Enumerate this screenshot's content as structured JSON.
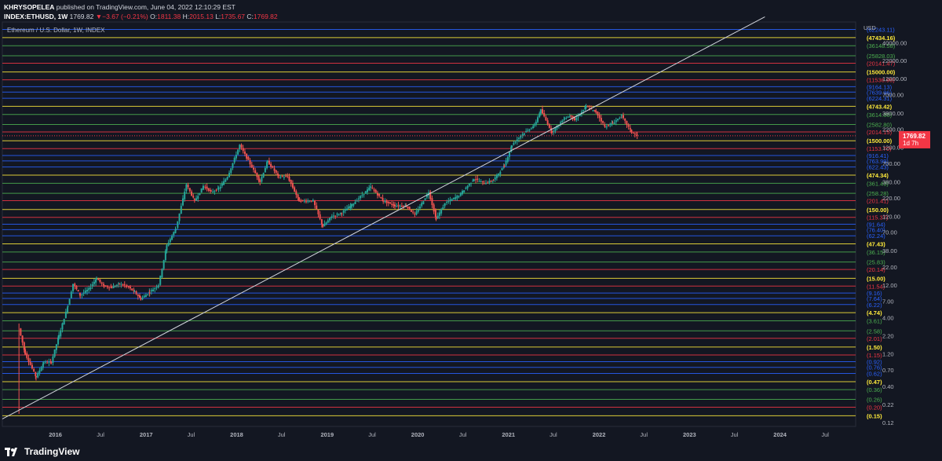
{
  "header": {
    "author": "KHRYSOPELEA",
    "published": "published on TradingView.com, June 04, 2022 12:10:29 EST",
    "symbol": "INDEX:ETHUSD, 1W",
    "last": "1769.82",
    "change": "−3.67 (−0.21%)",
    "open_label": "O:",
    "open": "1811.38",
    "high_label": "H:",
    "high": "2015.13",
    "low_label": "L:",
    "low": "1735.67",
    "close_label": "C:",
    "close": "1769.82"
  },
  "legend": {
    "title": "Ethereum / U.S. Dollar, 1W, INDEX"
  },
  "price_tag": {
    "price": "1769.82",
    "countdown": "1d 7h"
  },
  "footer": {
    "brand": "TradingView"
  },
  "colors": {
    "background": "#131722",
    "yellow": "#ffeb3b",
    "green": "#4caf50",
    "red": "#f23645",
    "blue": "#2962ff",
    "up": "#26a69a",
    "down": "#ef5350"
  },
  "chart_data": {
    "type": "candlestick",
    "series": [
      {
        "name": "Ethereum / U.S. Dollar, 1W, INDEX"
      }
    ],
    "scale": "log",
    "currency": "USD",
    "ylim": [
      0.105,
      80000
    ],
    "xlim": [
      "2015-06-01",
      "2024-11-01"
    ],
    "x_ticks": [
      {
        "label": "2016",
        "date": "2016-01-01"
      },
      {
        "label": "Jul",
        "date": "2016-07-01"
      },
      {
        "label": "2017",
        "date": "2017-01-01"
      },
      {
        "label": "Jul",
        "date": "2017-07-01"
      },
      {
        "label": "2018",
        "date": "2018-01-01"
      },
      {
        "label": "Jul",
        "date": "2018-07-01"
      },
      {
        "label": "2019",
        "date": "2019-01-01"
      },
      {
        "label": "Jul",
        "date": "2019-07-01"
      },
      {
        "label": "2020",
        "date": "2020-01-01"
      },
      {
        "label": "Jul",
        "date": "2020-07-01"
      },
      {
        "label": "2021",
        "date": "2021-01-01"
      },
      {
        "label": "Jul",
        "date": "2021-07-01"
      },
      {
        "label": "2022",
        "date": "2022-01-01"
      },
      {
        "label": "Jul",
        "date": "2022-07-01"
      },
      {
        "label": "2023",
        "date": "2023-01-01"
      },
      {
        "label": "Jul",
        "date": "2023-07-01"
      },
      {
        "label": "2024",
        "date": "2024-01-01"
      },
      {
        "label": "Jul",
        "date": "2024-07-01"
      }
    ],
    "y_ticks": [
      "40000.00",
      "22000.00",
      "12000.00",
      "7000.00",
      "3800.00",
      "2200.00",
      "1200.00",
      "700.00",
      "380.00",
      "220.00",
      "120.00",
      "70.00",
      "38.00",
      "22.00",
      "12.00",
      "7.00",
      "4.00",
      "2.20",
      "1.20",
      "0.70",
      "0.40",
      "0.22",
      "0.12"
    ],
    "levels": [
      {
        "value": 62243.11,
        "label": "62243.11",
        "color": "#2962ff"
      },
      {
        "value": 47434.16,
        "label": "47434.16",
        "color": "#ffeb3b"
      },
      {
        "value": 36148.58,
        "label": "36148.58",
        "color": "#4caf50"
      },
      {
        "value": 25828.03,
        "label": "25828.03",
        "color": "#4caf50"
      },
      {
        "value": 20141.47,
        "label": "20141.47",
        "color": "#f23645"
      },
      {
        "value": 15000.0,
        "label": "15000.00",
        "color": "#ffeb3b"
      },
      {
        "value": 11536.96,
        "label": "11536.96",
        "color": "#f23645"
      },
      {
        "value": 9164.13,
        "label": "9164.13",
        "color": "#2962ff"
      },
      {
        "value": 7639.96,
        "label": "7639.96",
        "color": "#2962ff"
      },
      {
        "value": 6224.31,
        "label": "6224.31",
        "color": "#2962ff"
      },
      {
        "value": 4743.42,
        "label": "4743.42",
        "color": "#ffeb3b"
      },
      {
        "value": 3614.86,
        "label": "3614.86",
        "color": "#4caf50"
      },
      {
        "value": 2582.8,
        "label": "2582.80",
        "color": "#4caf50"
      },
      {
        "value": 2014.15,
        "label": "2014.15",
        "color": "#f23645"
      },
      {
        "value": 1500.0,
        "label": "1500.00",
        "color": "#ffeb3b"
      },
      {
        "value": 1153.7,
        "label": "1153.70",
        "color": "#f23645"
      },
      {
        "value": 916.41,
        "label": "916.41",
        "color": "#2962ff"
      },
      {
        "value": 763.99,
        "label": "763.99",
        "color": "#2962ff"
      },
      {
        "value": 622.43,
        "label": "622.43",
        "color": "#2962ff"
      },
      {
        "value": 474.34,
        "label": "474.34",
        "color": "#ffeb3b"
      },
      {
        "value": 361.49,
        "label": "361.49",
        "color": "#4caf50"
      },
      {
        "value": 258.28,
        "label": "258.28",
        "color": "#4caf50"
      },
      {
        "value": 201.41,
        "label": "201.41",
        "color": "#f23645"
      },
      {
        "value": 150.0,
        "label": "150.00",
        "color": "#ffeb3b"
      },
      {
        "value": 115.37,
        "label": "115.37",
        "color": "#f23645"
      },
      {
        "value": 91.64,
        "label": "91.64",
        "color": "#2962ff"
      },
      {
        "value": 76.4,
        "label": "76.40",
        "color": "#2962ff"
      },
      {
        "value": 62.24,
        "label": "62.24",
        "color": "#2962ff"
      },
      {
        "value": 47.43,
        "label": "47.43",
        "color": "#ffeb3b"
      },
      {
        "value": 36.15,
        "label": "36.15",
        "color": "#4caf50"
      },
      {
        "value": 25.83,
        "label": "25.83",
        "color": "#4caf50"
      },
      {
        "value": 20.14,
        "label": "20.14",
        "color": "#f23645"
      },
      {
        "value": 15.0,
        "label": "15.00",
        "color": "#ffeb3b"
      },
      {
        "value": 11.54,
        "label": "11.54",
        "color": "#f23645"
      },
      {
        "value": 9.16,
        "label": "9.16",
        "color": "#2962ff"
      },
      {
        "value": 7.64,
        "label": "7.64",
        "color": "#2962ff"
      },
      {
        "value": 6.22,
        "label": "6.22",
        "color": "#2962ff"
      },
      {
        "value": 4.74,
        "label": "4.74",
        "color": "#ffeb3b"
      },
      {
        "value": 3.61,
        "label": "3.61",
        "color": "#4caf50"
      },
      {
        "value": 2.58,
        "label": "2.58",
        "color": "#4caf50"
      },
      {
        "value": 2.01,
        "label": "2.01",
        "color": "#f23645"
      },
      {
        "value": 1.5,
        "label": "1.50",
        "color": "#ffeb3b"
      },
      {
        "value": 1.15,
        "label": "1.15",
        "color": "#f23645"
      },
      {
        "value": 0.92,
        "label": "0.92",
        "color": "#2962ff"
      },
      {
        "value": 0.76,
        "label": "0.76",
        "color": "#2962ff"
      },
      {
        "value": 0.62,
        "label": "0.62",
        "color": "#2962ff"
      },
      {
        "value": 0.47,
        "label": "0.47",
        "color": "#ffeb3b"
      },
      {
        "value": 0.36,
        "label": "0.36",
        "color": "#4caf50"
      },
      {
        "value": 0.26,
        "label": "0.26",
        "color": "#4caf50"
      },
      {
        "value": 0.2,
        "label": "0.20",
        "color": "#f23645"
      },
      {
        "value": 0.15,
        "label": "0.15",
        "color": "#ffeb3b"
      }
    ],
    "trendline": [
      {
        "date": "2015-06-01",
        "value": 0.135
      },
      {
        "date": "2023-11-01",
        "value": 95000
      }
    ],
    "price_path": [
      {
        "date": "2015-08-07",
        "value": 2.8
      },
      {
        "date": "2015-09-01",
        "value": 1.2
      },
      {
        "date": "2015-10-15",
        "value": 0.55
      },
      {
        "date": "2015-11-15",
        "value": 0.9
      },
      {
        "date": "2015-12-15",
        "value": 0.9
      },
      {
        "date": "2016-01-15",
        "value": 2.2
      },
      {
        "date": "2016-02-20",
        "value": 6.0
      },
      {
        "date": "2016-03-12",
        "value": 12.5
      },
      {
        "date": "2016-04-10",
        "value": 8.5
      },
      {
        "date": "2016-05-15",
        "value": 10.5
      },
      {
        "date": "2016-06-15",
        "value": 15.0
      },
      {
        "date": "2016-07-15",
        "value": 11.5
      },
      {
        "date": "2016-08-15",
        "value": 11.0
      },
      {
        "date": "2016-09-15",
        "value": 12.5
      },
      {
        "date": "2016-10-15",
        "value": 11.5
      },
      {
        "date": "2016-11-15",
        "value": 9.5
      },
      {
        "date": "2016-12-10",
        "value": 7.5
      },
      {
        "date": "2017-01-15",
        "value": 9.5
      },
      {
        "date": "2017-02-20",
        "value": 12.0
      },
      {
        "date": "2017-03-25",
        "value": 45.0
      },
      {
        "date": "2017-05-01",
        "value": 80.0
      },
      {
        "date": "2017-06-12",
        "value": 350.0
      },
      {
        "date": "2017-07-15",
        "value": 200.0
      },
      {
        "date": "2017-08-20",
        "value": 330.0
      },
      {
        "date": "2017-09-20",
        "value": 270.0
      },
      {
        "date": "2017-10-20",
        "value": 300.0
      },
      {
        "date": "2017-11-25",
        "value": 450.0
      },
      {
        "date": "2018-01-13",
        "value": 1300.0
      },
      {
        "date": "2018-02-10",
        "value": 850.0
      },
      {
        "date": "2018-04-05",
        "value": 380.0
      },
      {
        "date": "2018-05-05",
        "value": 750.0
      },
      {
        "date": "2018-06-20",
        "value": 450.0
      },
      {
        "date": "2018-07-25",
        "value": 450.0
      },
      {
        "date": "2018-09-10",
        "value": 200.0
      },
      {
        "date": "2018-11-05",
        "value": 200.0
      },
      {
        "date": "2018-12-14",
        "value": 85.0
      },
      {
        "date": "2019-01-20",
        "value": 120.0
      },
      {
        "date": "2019-03-01",
        "value": 135.0
      },
      {
        "date": "2019-04-10",
        "value": 175.0
      },
      {
        "date": "2019-06-25",
        "value": 320.0
      },
      {
        "date": "2019-08-15",
        "value": 200.0
      },
      {
        "date": "2019-10-01",
        "value": 170.0
      },
      {
        "date": "2019-11-15",
        "value": 170.0
      },
      {
        "date": "2019-12-20",
        "value": 125.0
      },
      {
        "date": "2020-02-14",
        "value": 270.0
      },
      {
        "date": "2020-03-15",
        "value": 110.0
      },
      {
        "date": "2020-04-20",
        "value": 185.0
      },
      {
        "date": "2020-06-15",
        "value": 240.0
      },
      {
        "date": "2020-08-15",
        "value": 420.0
      },
      {
        "date": "2020-09-25",
        "value": 360.0
      },
      {
        "date": "2020-11-01",
        "value": 400.0
      },
      {
        "date": "2020-12-15",
        "value": 650.0
      },
      {
        "date": "2021-01-15",
        "value": 1300.0
      },
      {
        "date": "2021-02-20",
        "value": 1800.0
      },
      {
        "date": "2021-04-15",
        "value": 2500.0
      },
      {
        "date": "2021-05-11",
        "value": 4200.0
      },
      {
        "date": "2021-06-25",
        "value": 2000.0
      },
      {
        "date": "2021-08-15",
        "value": 3200.0
      },
      {
        "date": "2021-09-10",
        "value": 3500.0
      },
      {
        "date": "2021-09-25",
        "value": 3000.0
      },
      {
        "date": "2021-11-10",
        "value": 4700.0
      },
      {
        "date": "2021-12-20",
        "value": 3900.0
      },
      {
        "date": "2022-01-25",
        "value": 2400.0
      },
      {
        "date": "2022-02-25",
        "value": 2700.0
      },
      {
        "date": "2022-04-02",
        "value": 3450.0
      },
      {
        "date": "2022-05-12",
        "value": 2000.0
      },
      {
        "date": "2022-06-04",
        "value": 1769.82
      }
    ]
  }
}
